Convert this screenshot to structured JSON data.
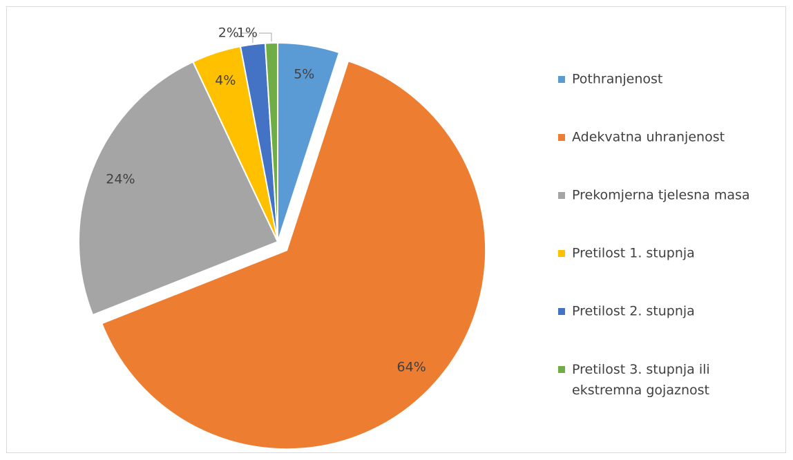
{
  "chart_data": {
    "type": "pie",
    "categories": [
      "Pothranjenost",
      "Adekvatna uhranjenost",
      "Prekomjerna tjelesna masa",
      "Pretilost 1. stupnja",
      "Pretilost 2. stupnja",
      "Pretilost 3. stupnja ili ekstremna gojaznost"
    ],
    "values": [
      5,
      64,
      24,
      4,
      2,
      1
    ],
    "value_labels": [
      "5%",
      "64%",
      "24%",
      "4%",
      "2%",
      "1%"
    ],
    "colors": [
      "#5b9bd5",
      "#ed7d31",
      "#a5a5a5",
      "#ffc000",
      "#4472c4",
      "#70ad47"
    ],
    "exploded": [
      1
    ],
    "legend": "right"
  }
}
